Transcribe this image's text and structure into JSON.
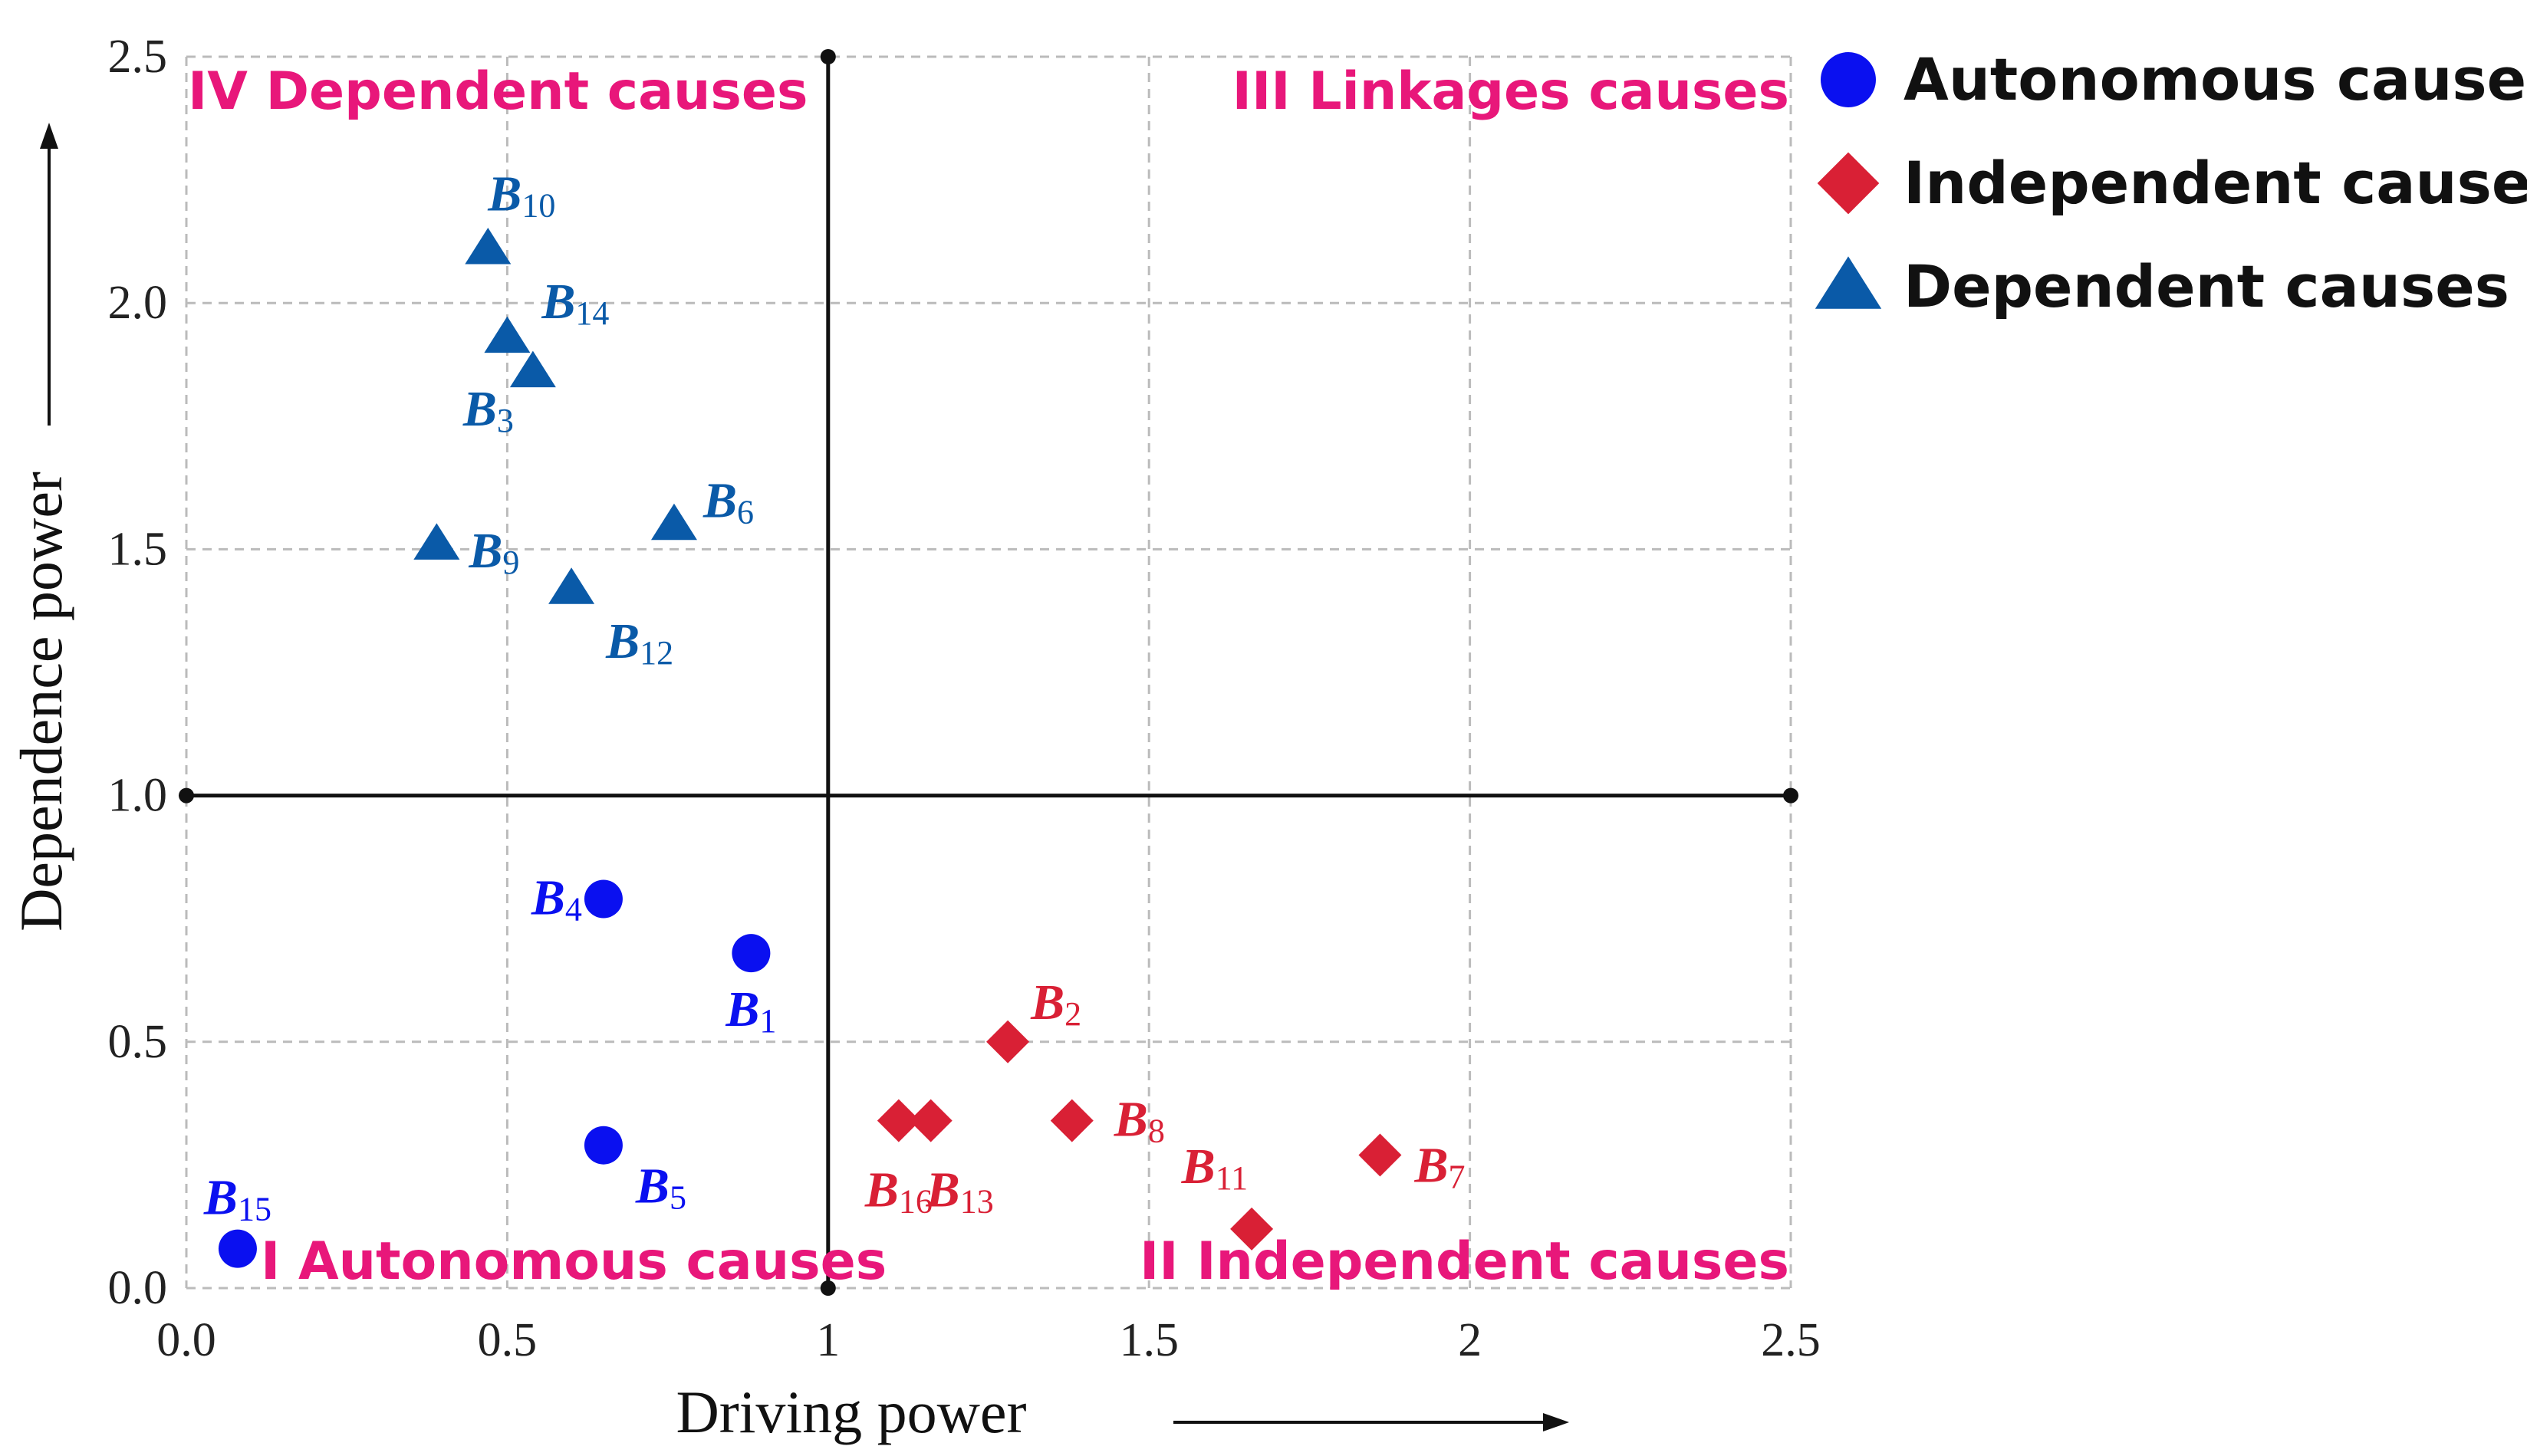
{
  "chart_data": {
    "type": "scatter",
    "title": "",
    "xlabel": "Driving power",
    "ylabel": "Dependence power",
    "xlim": [
      0,
      2.5
    ],
    "ylim": [
      0,
      2.5
    ],
    "grid": true,
    "x_ticks": [
      "0.0",
      "0.5",
      "1",
      "1.5",
      "2",
      "2.5"
    ],
    "y_ticks": [
      "0.0",
      "0.5",
      "1.0",
      "1.5",
      "2.0",
      "2.5"
    ],
    "divider_x": 1,
    "divider_y": 1,
    "quadrants": [
      {
        "label": "I Autonomous causes",
        "position": "bottom-left"
      },
      {
        "label": "II Independent causes",
        "position": "bottom-right"
      },
      {
        "label": "III Linkages causes",
        "position": "top-right"
      },
      {
        "label": "IV Dependent causes",
        "position": "top-left"
      }
    ],
    "legend_position": "top-right",
    "series": [
      {
        "name": "Autonomous causes",
        "marker": "circle",
        "color": "#0A10F0",
        "points": [
          {
            "label": "B",
            "sub": "1",
            "x": 0.88,
            "y": 0.68
          },
          {
            "label": "B",
            "sub": "4",
            "x": 0.65,
            "y": 0.79
          },
          {
            "label": "B",
            "sub": "5",
            "x": 0.65,
            "y": 0.29
          },
          {
            "label": "B",
            "sub": "15",
            "x": 0.08,
            "y": 0.08
          }
        ]
      },
      {
        "name": "Independent causes",
        "marker": "diamond",
        "color": "#D92035",
        "points": [
          {
            "label": "B",
            "sub": "2",
            "x": 1.28,
            "y": 0.5
          },
          {
            "label": "B",
            "sub": "7",
            "x": 1.86,
            "y": 0.27
          },
          {
            "label": "B",
            "sub": "8",
            "x": 1.38,
            "y": 0.34
          },
          {
            "label": "B",
            "sub": "11",
            "x": 1.66,
            "y": 0.12
          },
          {
            "label": "B",
            "sub": "13",
            "x": 1.16,
            "y": 0.34
          },
          {
            "label": "B",
            "sub": "16",
            "x": 1.11,
            "y": 0.34
          }
        ]
      },
      {
        "name": "Dependent causes",
        "marker": "triangle",
        "color": "#0A5AA8",
        "points": [
          {
            "label": "B",
            "sub": "3",
            "x": 0.54,
            "y": 1.86
          },
          {
            "label": "B",
            "sub": "6",
            "x": 0.76,
            "y": 1.55
          },
          {
            "label": "B",
            "sub": "9",
            "x": 0.39,
            "y": 1.51
          },
          {
            "label": "B",
            "sub": "10",
            "x": 0.47,
            "y": 2.11
          },
          {
            "label": "B",
            "sub": "12",
            "x": 0.6,
            "y": 1.42
          },
          {
            "label": "B",
            "sub": "14",
            "x": 0.5,
            "y": 1.93
          }
        ]
      }
    ]
  },
  "colors": {
    "quadrant_label": "#E8177A",
    "axis": "#111111",
    "grid": "#BBBBBB"
  }
}
